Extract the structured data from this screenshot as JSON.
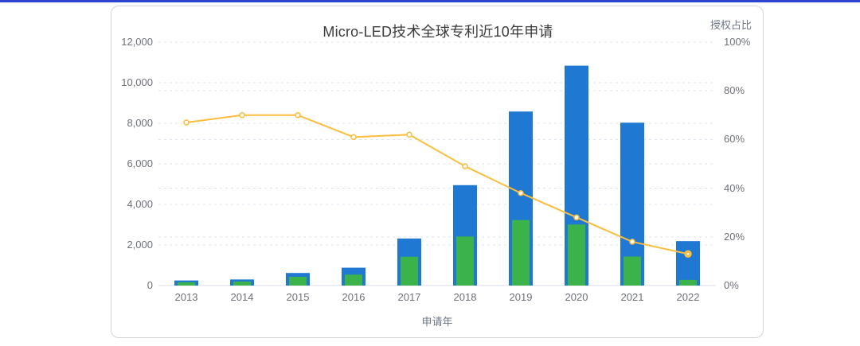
{
  "page": {
    "top_divider_color": "#2945cf",
    "background": "#ffffff"
  },
  "chart_data": {
    "type": "bar",
    "subtype": "bar-line-combo",
    "title": "Micro-LED技术全球专利近10年申请",
    "xlabel": "申请年",
    "categories": [
      "2013",
      "2014",
      "2015",
      "2016",
      "2017",
      "2018",
      "2019",
      "2020",
      "2021",
      "2022"
    ],
    "series": [
      {
        "id": "total-applications-bar",
        "type": "bar",
        "axis": "left",
        "color": "#1f78d1",
        "values": [
          250,
          300,
          620,
          880,
          2320,
          4950,
          8580,
          10840,
          8030,
          2190
        ]
      },
      {
        "id": "granted-applications-bar",
        "type": "bar",
        "axis": "left",
        "color": "#3cb24a",
        "values": [
          160,
          200,
          430,
          540,
          1420,
          2420,
          3230,
          3010,
          1430,
          280
        ]
      },
      {
        "id": "grant-ratio-line",
        "name": "授权占比",
        "type": "line",
        "axis": "right",
        "color": "#fbbd3b",
        "marker_fill": "#ffffff",
        "values": [
          67,
          70,
          70,
          61,
          62,
          49,
          38,
          28,
          18,
          13
        ]
      }
    ],
    "left_axis": {
      "min": 0,
      "max": 12000,
      "step": 2000,
      "tick_labels": [
        "0",
        "2,000",
        "4,000",
        "6,000",
        "8,000",
        "10,000",
        "12,000"
      ]
    },
    "right_axis": {
      "name": "授权占比",
      "min": 0,
      "max": 100,
      "step": 20,
      "tick_labels": [
        "0%",
        "20%",
        "40%",
        "60%",
        "80%",
        "100%"
      ]
    },
    "grid": {
      "visible": true,
      "line_color": "#dde3ee",
      "axis_line_color": "#d8dee8",
      "style": "dashed"
    },
    "legend": {
      "visible": false
    },
    "text_color": "#6e7079"
  }
}
